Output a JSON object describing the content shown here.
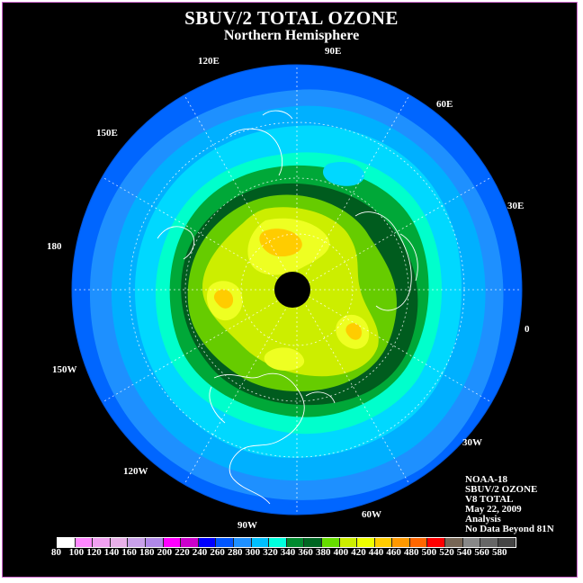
{
  "title": "SBUV/2 TOTAL OZONE",
  "subtitle": "Northern Hemisphere",
  "longitude_labels": [
    {
      "id": "120E",
      "text": "120E"
    },
    {
      "id": "90E",
      "text": "90E"
    },
    {
      "id": "60E",
      "text": "60E"
    },
    {
      "id": "150E",
      "text": "150E"
    },
    {
      "id": "30E",
      "text": "30E"
    },
    {
      "id": "180",
      "text": "180"
    },
    {
      "id": "0",
      "text": "0"
    },
    {
      "id": "150W",
      "text": "150W"
    },
    {
      "id": "30W",
      "text": "30W"
    },
    {
      "id": "120W",
      "text": "120W"
    },
    {
      "id": "60W",
      "text": "60W"
    },
    {
      "id": "90W",
      "text": "90W"
    }
  ],
  "info": {
    "satellite": "NOAA-18",
    "product": "SBUV/2 OZONE",
    "version": "V8 TOTAL",
    "date": "May 22, 2009",
    "type": "Analysis",
    "note": "No Data Beyond 81N"
  },
  "scale": {
    "labels": [
      "80",
      "100",
      "120",
      "140",
      "160",
      "180",
      "200",
      "220",
      "240",
      "260",
      "280",
      "300",
      "320",
      "340",
      "360",
      "380",
      "400",
      "420",
      "440",
      "460",
      "480",
      "500",
      "520",
      "540",
      "560",
      "580"
    ],
    "colors": [
      "#ffffff",
      "#ff88ff",
      "#f0a0f0",
      "#e8b0e8",
      "#c8a0e8",
      "#b088e8",
      "#ff00ff",
      "#cc00cc",
      "#0000ff",
      "#0055ff",
      "#1e90ff",
      "#00c0ff",
      "#00ffdd",
      "#008a2e",
      "#006622",
      "#66dd00",
      "#ccee00",
      "#eeff00",
      "#ffcc00",
      "#ff9900",
      "#ff6600",
      "#ff0000",
      "#776655",
      "#888888",
      "#666666",
      "#444444"
    ]
  },
  "map_colors": {
    "background": "#000000",
    "pole_no_data": "#000000",
    "band_240_260": "#0066ff",
    "band_260_280": "#1e90ff",
    "band_280_300": "#00b0ff",
    "band_300_320": "#00d8ff",
    "band_320_340": "#00ffcc",
    "band_340_360": "#00a838",
    "band_360_380": "#005c1e",
    "band_380_400": "#66cc00",
    "band_400_420": "#ccee00",
    "band_420_440": "#eeff22",
    "band_440_460": "#ffcc00"
  }
}
